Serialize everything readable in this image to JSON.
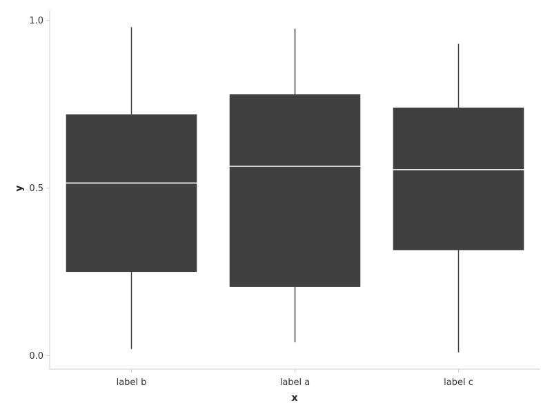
{
  "chart_data": {
    "type": "box",
    "title": "",
    "xlabel": "x",
    "ylabel": "y",
    "ylim": [
      -0.04,
      1.03
    ],
    "yticks": [
      0.0,
      0.5,
      1.0
    ],
    "ytick_labels": [
      "0.0",
      "0.5",
      "1.0"
    ],
    "grid": false,
    "legend": "none",
    "categories": [
      "label b",
      "label a",
      "label c"
    ],
    "boxes": [
      {
        "category": "label b",
        "whisker_low": 0.02,
        "q1": 0.25,
        "median": 0.515,
        "q3": 0.72,
        "whisker_high": 0.98
      },
      {
        "category": "label a",
        "whisker_low": 0.04,
        "q1": 0.205,
        "median": 0.565,
        "q3": 0.78,
        "whisker_high": 0.975
      },
      {
        "category": "label c",
        "whisker_low": 0.01,
        "q1": 0.315,
        "median": 0.555,
        "q3": 0.74,
        "whisker_high": 0.93
      }
    ],
    "colors": {
      "box_fill": "#404040",
      "median_line": "#ffffff",
      "whisker": "#404040",
      "axis": "#cccccc"
    }
  }
}
